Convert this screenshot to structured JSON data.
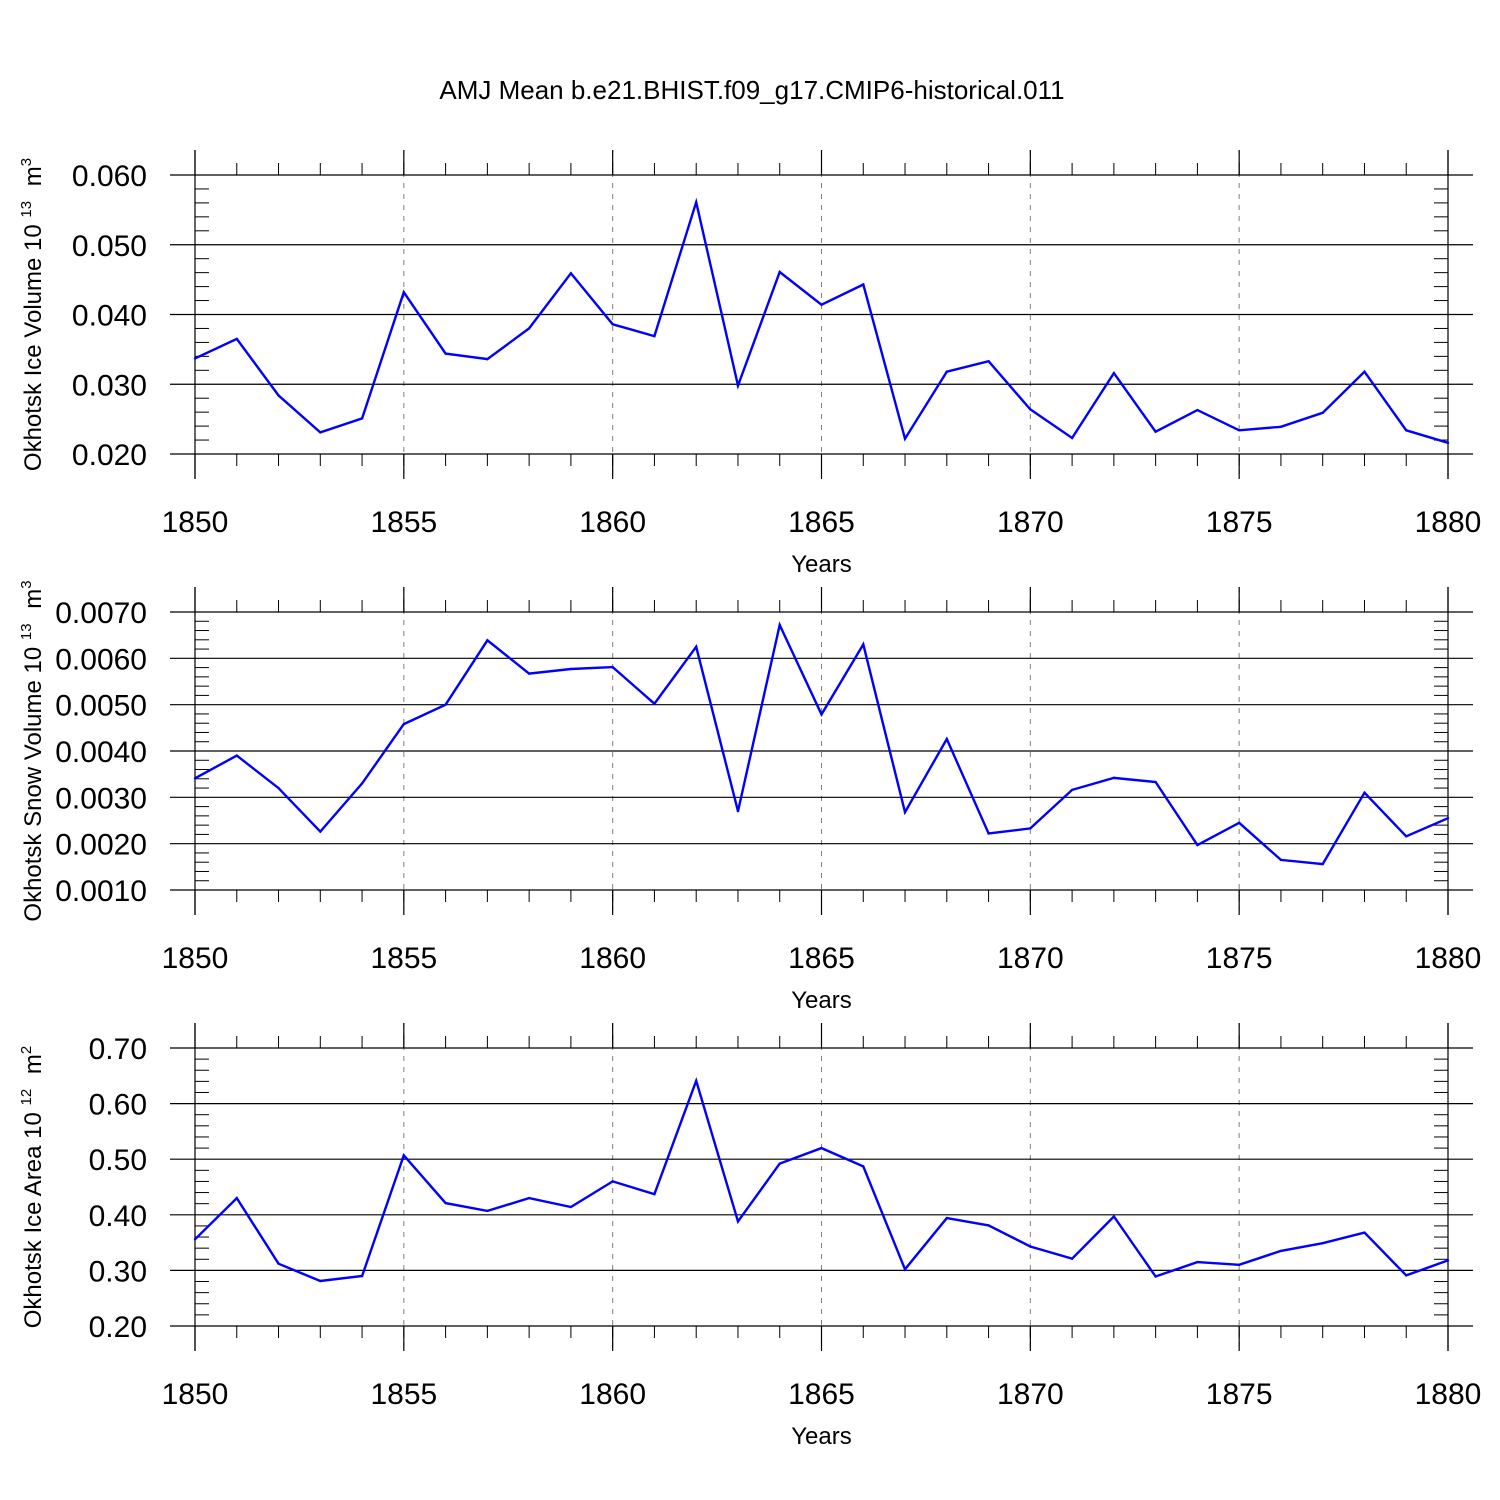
{
  "title": "AMJ Mean b.e21.BHIST.f09_g17.CMIP6-historical.011",
  "colors": {
    "line": "#0000ff",
    "axis": "#000000",
    "grid": "#808080"
  },
  "chart_data": [
    {
      "type": "line",
      "ylabel_text": "Okhotsk Ice Volume 10",
      "ylabel_exp": "13",
      "ylabel_unit": "m",
      "ylabel_unit_exp": "3",
      "xlabel": "Years",
      "xlim": [
        1850,
        1880
      ],
      "ylim": [
        0.02,
        0.06
      ],
      "xticks": [
        "1850",
        "1855",
        "1860",
        "1865",
        "1870",
        "1875",
        "1880"
      ],
      "yticks": [
        "0.020",
        "0.030",
        "0.040",
        "0.050",
        "0.060"
      ],
      "x": [
        1850,
        1851,
        1852,
        1853,
        1854,
        1855,
        1856,
        1857,
        1858,
        1859,
        1860,
        1861,
        1862,
        1863,
        1864,
        1865,
        1866,
        1867,
        1868,
        1869,
        1870,
        1871,
        1872,
        1873,
        1874,
        1875,
        1876,
        1877,
        1878,
        1879,
        1880
      ],
      "values": [
        0.0337,
        0.0365,
        0.0284,
        0.0231,
        0.0251,
        0.0432,
        0.0344,
        0.0336,
        0.038,
        0.0459,
        0.0386,
        0.0369,
        0.0561,
        0.0298,
        0.0461,
        0.0414,
        0.0443,
        0.0222,
        0.0318,
        0.0333,
        0.0264,
        0.0223,
        0.0316,
        0.0232,
        0.0263,
        0.0234,
        0.0239,
        0.0259,
        0.0318,
        0.0234,
        0.0216
      ]
    },
    {
      "type": "line",
      "ylabel_text": "Okhotsk Snow Volume 10",
      "ylabel_exp": "13",
      "ylabel_unit": "m",
      "ylabel_unit_exp": "3",
      "xlabel": "Years",
      "xlim": [
        1850,
        1880
      ],
      "ylim": [
        0.001,
        0.007
      ],
      "xticks": [
        "1850",
        "1855",
        "1860",
        "1865",
        "1870",
        "1875",
        "1880"
      ],
      "yticks": [
        "0.0010",
        "0.0020",
        "0.0030",
        "0.0040",
        "0.0050",
        "0.0060",
        "0.0070"
      ],
      "x": [
        1850,
        1851,
        1852,
        1853,
        1854,
        1855,
        1856,
        1857,
        1858,
        1859,
        1860,
        1861,
        1862,
        1863,
        1864,
        1865,
        1866,
        1867,
        1868,
        1869,
        1870,
        1871,
        1872,
        1873,
        1874,
        1875,
        1876,
        1877,
        1878,
        1879,
        1880
      ],
      "values": [
        0.00341,
        0.0039,
        0.0032,
        0.00226,
        0.0033,
        0.00458,
        0.005,
        0.00639,
        0.00567,
        0.00577,
        0.00581,
        0.00502,
        0.00625,
        0.0027,
        0.00672,
        0.00479,
        0.0063,
        0.00268,
        0.00426,
        0.00222,
        0.00233,
        0.00316,
        0.00342,
        0.00333,
        0.00197,
        0.00245,
        0.00165,
        0.00156,
        0.0031,
        0.00216,
        0.00255
      ]
    },
    {
      "type": "line",
      "ylabel_text": "Okhotsk Ice Area 10",
      "ylabel_exp": "12",
      "ylabel_unit": "m",
      "ylabel_unit_exp": "2",
      "xlabel": "Years",
      "xlim": [
        1850,
        1880
      ],
      "ylim": [
        0.2,
        0.7
      ],
      "xticks": [
        "1850",
        "1855",
        "1860",
        "1865",
        "1870",
        "1875",
        "1880"
      ],
      "yticks": [
        "0.20",
        "0.30",
        "0.40",
        "0.50",
        "0.60",
        "0.70"
      ],
      "x": [
        1850,
        1851,
        1852,
        1853,
        1854,
        1855,
        1856,
        1857,
        1858,
        1859,
        1860,
        1861,
        1862,
        1863,
        1864,
        1865,
        1866,
        1867,
        1868,
        1869,
        1870,
        1871,
        1872,
        1873,
        1874,
        1875,
        1876,
        1877,
        1878,
        1879,
        1880
      ],
      "values": [
        0.356,
        0.43,
        0.312,
        0.281,
        0.29,
        0.507,
        0.421,
        0.407,
        0.43,
        0.414,
        0.46,
        0.437,
        0.641,
        0.388,
        0.492,
        0.52,
        0.487,
        0.302,
        0.394,
        0.381,
        0.343,
        0.321,
        0.397,
        0.289,
        0.315,
        0.31,
        0.335,
        0.349,
        0.368,
        0.291,
        0.318
      ]
    }
  ]
}
